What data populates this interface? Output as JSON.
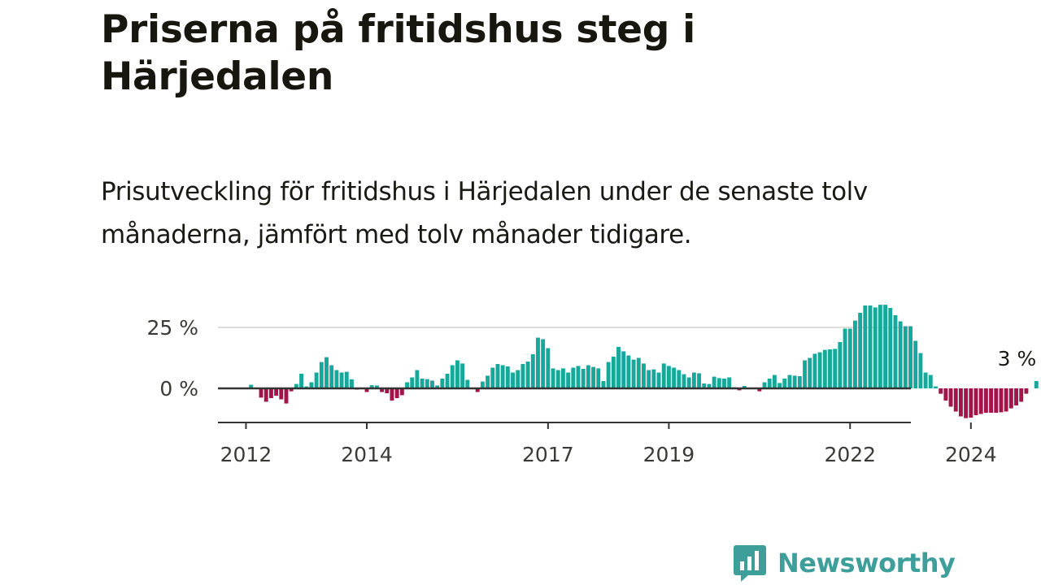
{
  "title": "Priserna på fritidshus steg i Härjedalen",
  "subtitle": "Prisutveckling för fritidshus i Härjedalen under de senaste tolv månaderna, jämfört med tolv månader tidigare.",
  "brand": {
    "name": "Newsworthy",
    "logo_icon": "newsworthy-chart-bubble-icon"
  },
  "colors": {
    "positive": "#17a89c",
    "negative": "#a3144a",
    "brand": "#3e9e9a"
  },
  "chart_data": {
    "type": "bar",
    "x_unit": "month",
    "start": "2012-01",
    "ylim": [
      -13,
      34
    ],
    "y_ticks": [
      {
        "value": 25,
        "label": "25 %"
      },
      {
        "value": 0,
        "label": "0 %"
      }
    ],
    "x_ticks": [
      {
        "value": "2012-01",
        "label": "2012"
      },
      {
        "value": "2014-01",
        "label": "2014"
      },
      {
        "value": "2017-01",
        "label": "2017"
      },
      {
        "value": "2019-01",
        "label": "2019"
      },
      {
        "value": "2022-01",
        "label": "2022"
      },
      {
        "value": "2024-01",
        "label": "2024"
      }
    ],
    "grid": true,
    "end_label": "3 %",
    "values": [
      0,
      1.5,
      0,
      -3.8,
      -5.5,
      -4,
      -3,
      -4.5,
      -6.2,
      -1.2,
      1.8,
      6,
      0.8,
      2.5,
      6.5,
      10.8,
      12.8,
      9.5,
      7.5,
      6.5,
      6.8,
      3.7,
      -0.5,
      0,
      -1.5,
      1.3,
      1.2,
      -1.5,
      -2,
      -5,
      -4,
      -2.8,
      2.5,
      4.5,
      7.5,
      4,
      3.8,
      3.2,
      1.2,
      4,
      6,
      9.5,
      11.5,
      10.2,
      3.5,
      0,
      -1.5,
      2.8,
      5.2,
      8.5,
      10,
      9.5,
      9,
      6.5,
      7.5,
      10,
      11,
      14,
      20.8,
      20.2,
      16.5,
      8.2,
      7.5,
      8.2,
      6.5,
      8.5,
      9.2,
      8,
      9.5,
      8.8,
      8.2,
      3,
      10.8,
      13,
      17,
      15.2,
      13.5,
      11.8,
      12.5,
      10.2,
      7.5,
      7.8,
      6.5,
      10.2,
      9.2,
      8.5,
      7.5,
      5.8,
      4.5,
      6.5,
      6.2,
      2,
      1.8,
      4.8,
      4.2,
      4,
      4.5,
      0.5,
      -0.8,
      1,
      0.2,
      0,
      -1.2,
      2.5,
      4,
      5.5,
      2.2,
      4,
      5.5,
      5.2,
      5,
      11.5,
      12.5,
      14.2,
      14.8,
      15.8,
      16,
      16.2,
      19,
      24.5,
      24.5,
      27.8,
      31,
      34,
      34,
      33.2,
      34.3,
      34.3,
      33,
      30,
      27.5,
      25.5,
      25.5,
      19.5,
      14.5,
      6.5,
      5.5,
      0.8,
      -2.2,
      -5,
      -7.5,
      -9.5,
      -11.5,
      -12.2,
      -12,
      -11,
      -10.5,
      -10,
      -10,
      -10,
      -9.8,
      -9.5,
      -8.2,
      -7,
      -5.5,
      -2.2,
      0,
      3
    ]
  }
}
